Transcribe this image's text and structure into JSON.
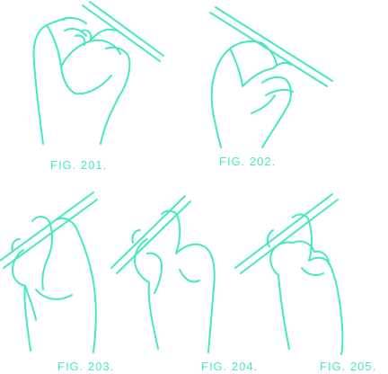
{
  "colors": {
    "ink": "#44e8c4",
    "background": "#ffffff"
  },
  "figures": [
    {
      "label": "FIG. 201."
    },
    {
      "label": "FIG. 202."
    },
    {
      "label": "FIG. 203."
    },
    {
      "label": "FIG. 204."
    },
    {
      "label": "FIG. 205."
    }
  ]
}
